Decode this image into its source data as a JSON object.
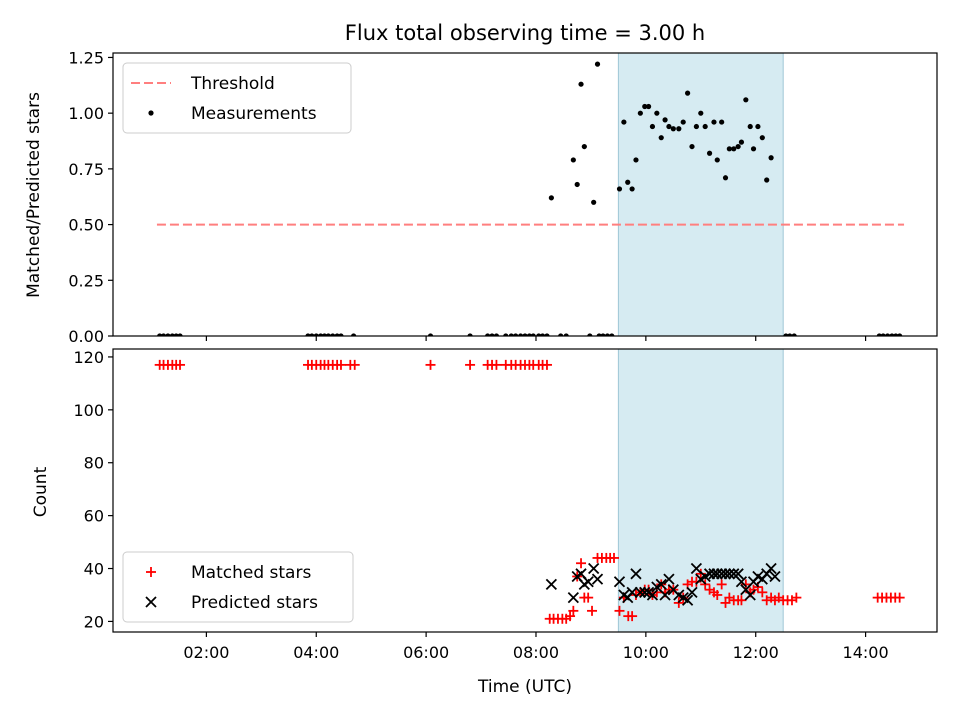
{
  "chart_data": [
    {
      "type": "scatter",
      "title": "Flux total observing time = 3.00 h",
      "xlabel": "",
      "ylabel": "Matched/Predicted stars",
      "xlim": [
        0.3,
        15.3
      ],
      "ylim": [
        0.0,
        1.27
      ],
      "yticks": [
        0.0,
        0.25,
        0.5,
        0.75,
        1.0,
        1.25
      ],
      "ytick_labels": [
        "0.00",
        "0.25",
        "0.50",
        "0.75",
        "1.00",
        "1.25"
      ],
      "shaded_span": [
        9.5,
        12.5
      ],
      "threshold": {
        "name": "Threshold",
        "value": 0.5,
        "x": [
          1.1,
          14.7
        ],
        "color": "#ff7f7f"
      },
      "legend": {
        "position": "top-left",
        "entries": [
          "Threshold",
          "Measurements"
        ]
      },
      "series": [
        {
          "name": "Measurements",
          "color": "#000000",
          "points": [
            [
              1.15,
              0
            ],
            [
              1.22,
              0
            ],
            [
              1.3,
              0
            ],
            [
              1.38,
              0
            ],
            [
              1.45,
              0
            ],
            [
              1.52,
              0
            ],
            [
              3.85,
              0
            ],
            [
              3.92,
              0
            ],
            [
              4.0,
              0
            ],
            [
              4.08,
              0
            ],
            [
              4.15,
              0
            ],
            [
              4.22,
              0
            ],
            [
              4.3,
              0
            ],
            [
              4.38,
              0
            ],
            [
              4.45,
              0
            ],
            [
              4.68,
              0
            ],
            [
              6.08,
              0
            ],
            [
              6.8,
              0
            ],
            [
              7.12,
              0
            ],
            [
              7.2,
              0
            ],
            [
              7.28,
              0
            ],
            [
              7.45,
              0
            ],
            [
              7.55,
              0
            ],
            [
              7.63,
              0
            ],
            [
              7.72,
              0
            ],
            [
              7.8,
              0
            ],
            [
              7.88,
              0
            ],
            [
              7.95,
              0
            ],
            [
              8.05,
              0
            ],
            [
              8.12,
              0
            ],
            [
              8.2,
              0
            ],
            [
              8.45,
              0
            ],
            [
              8.55,
              0
            ],
            [
              8.98,
              0
            ],
            [
              9.15,
              0
            ],
            [
              9.22,
              0
            ],
            [
              9.3,
              0
            ],
            [
              9.38,
              0
            ],
            [
              12.55,
              0
            ],
            [
              12.62,
              0
            ],
            [
              12.7,
              0
            ],
            [
              14.25,
              0
            ],
            [
              14.32,
              0
            ],
            [
              14.4,
              0
            ],
            [
              14.48,
              0
            ],
            [
              14.55,
              0
            ],
            [
              14.62,
              0
            ],
            [
              8.28,
              0.62
            ],
            [
              8.68,
              0.79
            ],
            [
              8.75,
              0.68
            ],
            [
              8.82,
              1.13
            ],
            [
              8.88,
              0.85
            ],
            [
              9.05,
              0.6
            ],
            [
              9.12,
              1.22
            ],
            [
              9.52,
              0.66
            ],
            [
              9.6,
              0.96
            ],
            [
              9.67,
              0.69
            ],
            [
              9.75,
              0.66
            ],
            [
              9.82,
              0.79
            ],
            [
              9.9,
              1.0
            ],
            [
              9.98,
              1.03
            ],
            [
              10.05,
              1.03
            ],
            [
              10.12,
              0.94
            ],
            [
              10.2,
              1.0
            ],
            [
              10.28,
              0.89
            ],
            [
              10.35,
              0.97
            ],
            [
              10.42,
              0.94
            ],
            [
              10.5,
              0.93
            ],
            [
              10.6,
              0.93
            ],
            [
              10.68,
              0.96
            ],
            [
              10.76,
              1.09
            ],
            [
              10.84,
              0.85
            ],
            [
              10.92,
              0.94
            ],
            [
              11.0,
              1.0
            ],
            [
              11.08,
              0.94
            ],
            [
              11.16,
              0.82
            ],
            [
              11.24,
              0.96
            ],
            [
              11.3,
              0.79
            ],
            [
              11.38,
              0.96
            ],
            [
              11.45,
              0.71
            ],
            [
              11.52,
              0.84
            ],
            [
              11.6,
              0.84
            ],
            [
              11.68,
              0.85
            ],
            [
              11.74,
              0.87
            ],
            [
              11.82,
              1.06
            ],
            [
              11.9,
              0.94
            ],
            [
              11.96,
              0.84
            ],
            [
              12.04,
              0.94
            ],
            [
              12.12,
              0.89
            ],
            [
              12.2,
              0.7
            ],
            [
              12.28,
              0.8
            ]
          ]
        }
      ]
    },
    {
      "type": "scatter",
      "title": "",
      "xlabel": "Time (UTC)",
      "ylabel": "Count",
      "xlim": [
        0.3,
        15.3
      ],
      "ylim": [
        16,
        123
      ],
      "xticks": [
        2,
        4,
        6,
        8,
        10,
        12,
        14
      ],
      "xtick_labels": [
        "02:00",
        "04:00",
        "06:00",
        "08:00",
        "10:00",
        "12:00",
        "14:00"
      ],
      "yticks": [
        20,
        40,
        60,
        80,
        100,
        120
      ],
      "ytick_labels": [
        "20",
        "40",
        "60",
        "80",
        "100",
        "120"
      ],
      "shaded_span": [
        9.5,
        12.5
      ],
      "legend": {
        "position": "bottom-left",
        "entries": [
          "Matched stars",
          "Predicted stars"
        ]
      },
      "series": [
        {
          "name": "Matched stars",
          "marker": "+",
          "color": "#ff0000",
          "points": [
            [
              1.15,
              117
            ],
            [
              1.22,
              117
            ],
            [
              1.3,
              117
            ],
            [
              1.38,
              117
            ],
            [
              1.45,
              117
            ],
            [
              1.52,
              117
            ],
            [
              3.85,
              117
            ],
            [
              3.92,
              117
            ],
            [
              4.0,
              117
            ],
            [
              4.08,
              117
            ],
            [
              4.15,
              117
            ],
            [
              4.22,
              117
            ],
            [
              4.3,
              117
            ],
            [
              4.38,
              117
            ],
            [
              4.45,
              117
            ],
            [
              4.62,
              117
            ],
            [
              4.7,
              117
            ],
            [
              6.08,
              117
            ],
            [
              6.8,
              117
            ],
            [
              7.12,
              117
            ],
            [
              7.2,
              117
            ],
            [
              7.28,
              117
            ],
            [
              7.45,
              117
            ],
            [
              7.55,
              117
            ],
            [
              7.63,
              117
            ],
            [
              7.72,
              117
            ],
            [
              7.8,
              117
            ],
            [
              7.88,
              117
            ],
            [
              7.95,
              117
            ],
            [
              8.05,
              117
            ],
            [
              8.12,
              117
            ],
            [
              8.2,
              117
            ],
            [
              8.25,
              21
            ],
            [
              8.32,
              21
            ],
            [
              8.4,
              21
            ],
            [
              8.48,
              21
            ],
            [
              8.55,
              21
            ],
            [
              8.62,
              22
            ],
            [
              8.68,
              24
            ],
            [
              8.75,
              37
            ],
            [
              8.82,
              42
            ],
            [
              8.88,
              29
            ],
            [
              8.95,
              29
            ],
            [
              9.02,
              24
            ],
            [
              9.12,
              44
            ],
            [
              9.2,
              44
            ],
            [
              9.28,
              44
            ],
            [
              9.35,
              44
            ],
            [
              9.42,
              44
            ],
            [
              9.52,
              24
            ],
            [
              9.6,
              29
            ],
            [
              9.68,
              22
            ],
            [
              9.75,
              22
            ],
            [
              9.82,
              30
            ],
            [
              9.9,
              31
            ],
            [
              9.98,
              32
            ],
            [
              10.05,
              32
            ],
            [
              10.12,
              30
            ],
            [
              10.2,
              31
            ],
            [
              10.28,
              34
            ],
            [
              10.35,
              31
            ],
            [
              10.42,
              32
            ],
            [
              10.5,
              32
            ],
            [
              10.6,
              27
            ],
            [
              10.68,
              29
            ],
            [
              10.76,
              34
            ],
            [
              10.84,
              35
            ],
            [
              10.92,
              35
            ],
            [
              11.0,
              38
            ],
            [
              11.08,
              34
            ],
            [
              11.16,
              32
            ],
            [
              11.24,
              31
            ],
            [
              11.3,
              30
            ],
            [
              11.38,
              34
            ],
            [
              11.45,
              27
            ],
            [
              11.52,
              29
            ],
            [
              11.6,
              28
            ],
            [
              11.68,
              28
            ],
            [
              11.74,
              28
            ],
            [
              11.82,
              34
            ],
            [
              11.9,
              31
            ],
            [
              11.96,
              32
            ],
            [
              12.04,
              33
            ],
            [
              12.12,
              31
            ],
            [
              12.2,
              28
            ],
            [
              12.28,
              29
            ],
            [
              12.35,
              28
            ],
            [
              12.42,
              29
            ],
            [
              12.5,
              28
            ],
            [
              12.58,
              28
            ],
            [
              12.66,
              28
            ],
            [
              12.74,
              29
            ],
            [
              14.22,
              29
            ],
            [
              14.3,
              29
            ],
            [
              14.38,
              29
            ],
            [
              14.46,
              29
            ],
            [
              14.54,
              29
            ],
            [
              14.62,
              29
            ]
          ]
        },
        {
          "name": "Predicted stars",
          "marker": "x",
          "color": "#000000",
          "points": [
            [
              8.28,
              34
            ],
            [
              8.68,
              29
            ],
            [
              8.75,
              37
            ],
            [
              8.82,
              38
            ],
            [
              8.88,
              34
            ],
            [
              8.95,
              35
            ],
            [
              9.05,
              40
            ],
            [
              9.12,
              36
            ],
            [
              9.52,
              35
            ],
            [
              9.6,
              30
            ],
            [
              9.67,
              29
            ],
            [
              9.75,
              31
            ],
            [
              9.82,
              38
            ],
            [
              9.9,
              31
            ],
            [
              9.98,
              31
            ],
            [
              10.05,
              31
            ],
            [
              10.12,
              30
            ],
            [
              10.2,
              33
            ],
            [
              10.28,
              34
            ],
            [
              10.35,
              30
            ],
            [
              10.42,
              36
            ],
            [
              10.5,
              32
            ],
            [
              10.6,
              30
            ],
            [
              10.68,
              29
            ],
            [
              10.76,
              28
            ],
            [
              10.84,
              31
            ],
            [
              10.92,
              40
            ],
            [
              11.0,
              36
            ],
            [
              11.08,
              37
            ],
            [
              11.16,
              38
            ],
            [
              11.24,
              38
            ],
            [
              11.3,
              38
            ],
            [
              11.38,
              38
            ],
            [
              11.45,
              38
            ],
            [
              11.52,
              38
            ],
            [
              11.6,
              38
            ],
            [
              11.68,
              38
            ],
            [
              11.74,
              35
            ],
            [
              11.82,
              32
            ],
            [
              11.9,
              30
            ],
            [
              11.96,
              35
            ],
            [
              12.04,
              37
            ],
            [
              12.12,
              36
            ],
            [
              12.2,
              38
            ],
            [
              12.28,
              40
            ],
            [
              12.35,
              37
            ]
          ]
        }
      ]
    }
  ]
}
